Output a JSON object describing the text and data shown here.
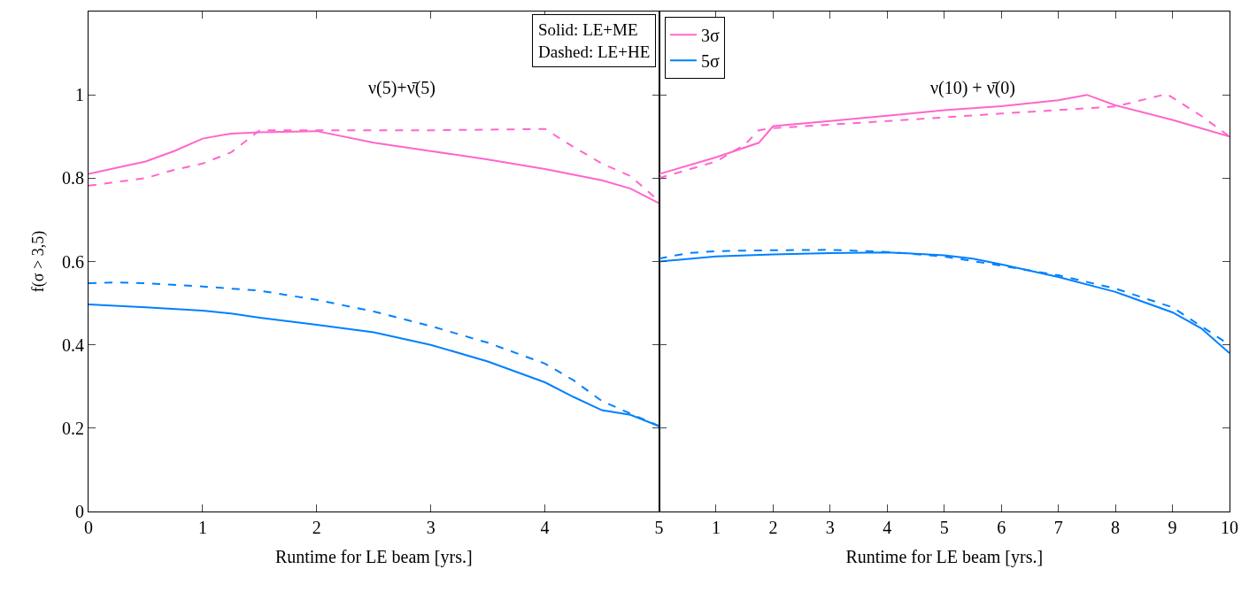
{
  "chart_data": [
    {
      "type": "line",
      "title": "ν(5)+ν̄(5)",
      "xlabel": "Runtime for LE beam [yrs.]",
      "ylabel": "f(σ > 3,5)",
      "xlim": [
        0,
        5
      ],
      "ylim": [
        0,
        1.2
      ],
      "xticks": [
        0,
        1,
        2,
        3,
        4,
        5
      ],
      "yticks": [
        0,
        0.2,
        0.4,
        0.6,
        0.8,
        1
      ],
      "tick_labels": "xy",
      "legend": false,
      "annotations": [
        "Solid: LE+ME\nDashed: LE+HE"
      ],
      "series": [
        {
          "color": "#ff66cc",
          "line_style": "solid",
          "x": [
            0,
            0.5,
            0.75,
            1,
            1.25,
            1.5,
            2,
            2.5,
            3,
            3.5,
            4,
            4.5,
            4.75,
            5
          ],
          "values": [
            0.81,
            0.84,
            0.865,
            0.895,
            0.907,
            0.91,
            0.913,
            0.885,
            0.865,
            0.845,
            0.822,
            0.795,
            0.775,
            0.74
          ]
        },
        {
          "color": "#ff66cc",
          "line_style": "dashed",
          "x": [
            0,
            0.5,
            0.75,
            1,
            1.25,
            1.5,
            2,
            3,
            4,
            4.25,
            4.5,
            4.75,
            5
          ],
          "values": [
            0.782,
            0.8,
            0.82,
            0.835,
            0.862,
            0.915,
            0.915,
            0.915,
            0.918,
            0.875,
            0.835,
            0.805,
            0.745
          ]
        },
        {
          "color": "#0080ff",
          "line_style": "solid",
          "x": [
            0,
            0.5,
            1,
            1.25,
            1.5,
            2,
            2.5,
            3,
            3.5,
            4,
            4.25,
            4.5,
            4.75,
            5
          ],
          "values": [
            0.497,
            0.49,
            0.482,
            0.475,
            0.465,
            0.448,
            0.43,
            0.4,
            0.36,
            0.31,
            0.275,
            0.243,
            0.232,
            0.205
          ]
        },
        {
          "color": "#0080ff",
          "line_style": "dashed",
          "x": [
            0,
            0.25,
            0.5,
            1,
            1.5,
            2,
            2.5,
            3,
            3.5,
            4,
            4.25,
            4.5,
            4.75,
            5
          ],
          "values": [
            0.548,
            0.55,
            0.548,
            0.54,
            0.53,
            0.508,
            0.48,
            0.445,
            0.405,
            0.355,
            0.315,
            0.265,
            0.235,
            0.205
          ]
        }
      ]
    },
    {
      "type": "line",
      "title": "ν(10) + ν̄(0)",
      "xlabel": "Runtime for LE beam [yrs.]",
      "xlim": [
        0,
        10
      ],
      "ylim": [
        0,
        1.2
      ],
      "xticks": [
        {
          "value": 0,
          "label": null
        },
        1,
        2,
        3,
        4,
        5,
        6,
        7,
        8,
        9,
        10
      ],
      "yticks": [
        {
          "value": 0,
          "label": null
        },
        {
          "value": 0.2,
          "label": null
        },
        {
          "value": 0.4,
          "label": null
        },
        {
          "value": 0.6,
          "label": null
        },
        {
          "value": 0.8,
          "label": null
        },
        {
          "value": 1,
          "label": null
        }
      ],
      "tick_labels": "x",
      "legend": "top left",
      "series": [
        {
          "name": "3σ",
          "color": "#ff66cc",
          "line_style": "solid",
          "x": [
            0,
            1,
            1.75,
            2,
            3,
            4,
            5,
            6,
            7,
            7.5,
            8,
            9,
            10
          ],
          "values": [
            0.81,
            0.85,
            0.885,
            0.925,
            0.937,
            0.95,
            0.963,
            0.973,
            0.987,
            1.0,
            0.975,
            0.94,
            0.9
          ]
        },
        {
          "color": "#ff66cc",
          "line_style": "dashed",
          "x": [
            0,
            1,
            1.5,
            1.75,
            2,
            4,
            6,
            8,
            8.9,
            9.5,
            10
          ],
          "values": [
            0.8,
            0.84,
            0.88,
            0.915,
            0.92,
            0.937,
            0.955,
            0.972,
            1.002,
            0.95,
            0.9
          ]
        },
        {
          "name": "5σ",
          "color": "#0080ff",
          "line_style": "solid",
          "x": [
            0,
            1,
            2,
            3,
            4,
            5,
            5.5,
            6,
            7,
            8,
            9,
            9.5,
            10
          ],
          "values": [
            0.6,
            0.612,
            0.617,
            0.62,
            0.622,
            0.615,
            0.607,
            0.593,
            0.563,
            0.527,
            0.478,
            0.44,
            0.38
          ]
        },
        {
          "color": "#0080ff",
          "line_style": "dashed",
          "x": [
            0,
            0.5,
            1,
            2,
            3,
            4,
            5,
            6,
            7,
            8,
            9,
            10
          ],
          "values": [
            0.607,
            0.62,
            0.625,
            0.627,
            0.628,
            0.623,
            0.612,
            0.59,
            0.567,
            0.535,
            0.49,
            0.4
          ]
        }
      ]
    }
  ]
}
